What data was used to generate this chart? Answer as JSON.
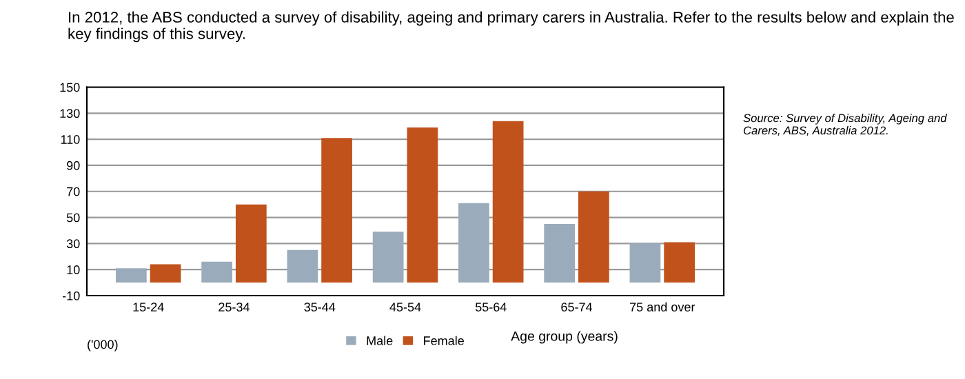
{
  "chart_data": {
    "type": "bar",
    "title": "In 2012, the ABS conducted a survey of disability, ageing and primary carers in Australia. Refer to the results below and explain the key findings of this survey.",
    "xlabel": "Age group (years)",
    "categories": [
      "15-24",
      "25-34",
      "35-44",
      "45-54",
      "55-64",
      "65-74",
      "75 and over"
    ],
    "series": [
      {
        "name": "Male",
        "color": "#9aacbb",
        "values": [
          11,
          16,
          25,
          39,
          61,
          45,
          30
        ]
      },
      {
        "name": "Female",
        "color": "#c1521c",
        "values": [
          14,
          60,
          111,
          119,
          124,
          70,
          31
        ]
      }
    ],
    "ylim": [
      -10,
      150
    ],
    "yticks": [
      -10,
      10,
      30,
      50,
      70,
      90,
      110,
      130,
      150
    ],
    "grid": "y",
    "legend": "bottom",
    "annotations": [
      "('000)",
      "Source: Survey of Disability, Ageing and Carers, ABS, Australia 2012."
    ]
  }
}
